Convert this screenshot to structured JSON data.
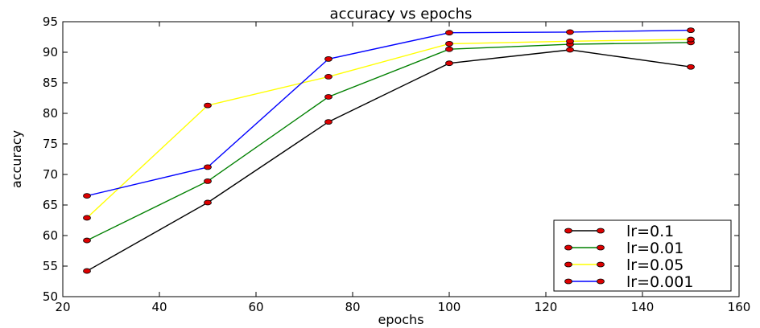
{
  "chart_data": {
    "type": "line",
    "title": "accuracy vs epochs",
    "xlabel": "epochs",
    "ylabel": "accuracy",
    "xlim": [
      20,
      160
    ],
    "ylim": [
      50,
      95
    ],
    "xticks": [
      20,
      40,
      60,
      80,
      100,
      120,
      140,
      160
    ],
    "yticks": [
      50,
      55,
      60,
      65,
      70,
      75,
      80,
      85,
      90,
      95
    ],
    "grid": false,
    "legend_position": "bottom-right",
    "marker_color": "#dd0000",
    "x": [
      25,
      50,
      75,
      100,
      125,
      150
    ],
    "series": [
      {
        "name": "lr=0.1",
        "color": "#000000",
        "values": [
          54.2,
          65.4,
          78.6,
          88.2,
          90.4,
          87.6
        ]
      },
      {
        "name": "lr=0.01",
        "color": "#008000",
        "values": [
          59.2,
          68.9,
          82.7,
          90.5,
          91.3,
          91.6
        ]
      },
      {
        "name": "lr=0.05",
        "color": "#ffff00",
        "values": [
          62.9,
          81.3,
          86.0,
          91.4,
          91.8,
          92.1
        ]
      },
      {
        "name": "lr=0.001",
        "color": "#0000ff",
        "values": [
          66.5,
          71.2,
          88.9,
          93.2,
          93.3,
          93.6
        ]
      }
    ]
  }
}
